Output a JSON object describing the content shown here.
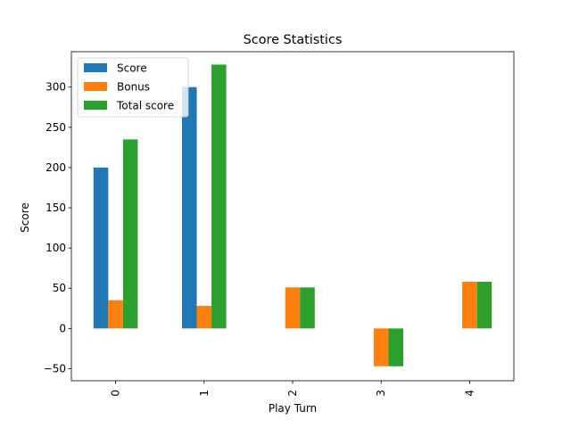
{
  "chart_data": {
    "type": "bar",
    "title": "Score Statistics",
    "xlabel": "Play Turn",
    "ylabel": "Score",
    "categories": [
      "0",
      "1",
      "2",
      "3",
      "4"
    ],
    "series": [
      {
        "name": "Score",
        "color": "#1f77b4",
        "values": [
          200,
          300,
          0,
          0,
          0
        ]
      },
      {
        "name": "Bonus",
        "color": "#ff7f0e",
        "values": [
          35,
          28,
          51,
          -47,
          58
        ]
      },
      {
        "name": "Total score",
        "color": "#2ca02c",
        "values": [
          235,
          328,
          51,
          -47,
          58
        ]
      }
    ],
    "yticks": [
      -50,
      0,
      50,
      100,
      150,
      200,
      250,
      300
    ],
    "ylim": [
      -65,
      344
    ],
    "grid": false,
    "legend_position": "upper-left"
  }
}
